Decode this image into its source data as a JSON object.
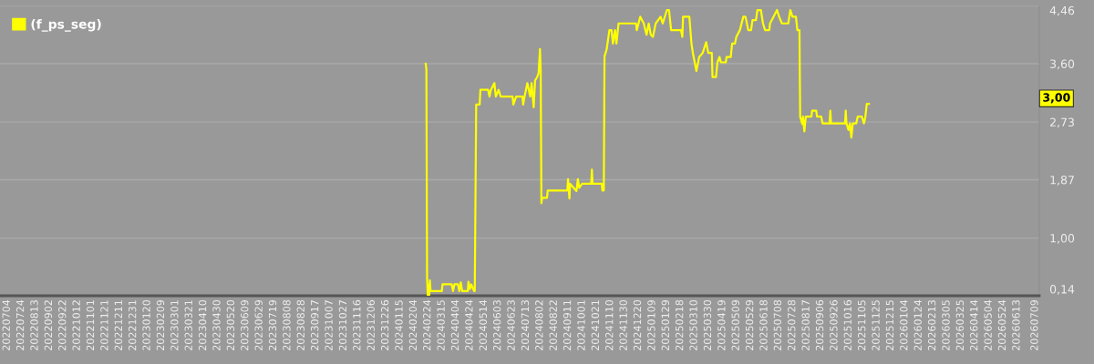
{
  "chart_data": {
    "type": "line",
    "series": [
      {
        "name": "(f_ps_seg)",
        "color": "#ffff00",
        "x": [
          "2024-02-21",
          "2024-02-22",
          "2024-02-23",
          "2024-02-24",
          "2024-02-25",
          "2024-02-26",
          "2024-02-27",
          "2024-02-28",
          "2024-03-15",
          "2024-03-16",
          "2024-03-29",
          "2024-03-31",
          "2024-04-02",
          "2024-04-07",
          "2024-04-09",
          "2024-04-11",
          "2024-04-13",
          "2024-04-21",
          "2024-04-22",
          "2024-04-24",
          "2024-04-26",
          "2024-04-30",
          "2024-05-01",
          "2024-05-03",
          "2024-05-08",
          "2024-05-09",
          "2024-05-20",
          "2024-05-22",
          "2024-05-24",
          "2024-05-29",
          "2024-05-31",
          "2024-06-04",
          "2024-06-07",
          "2024-06-24",
          "2024-06-25",
          "2024-06-29",
          "2024-07-08",
          "2024-07-09",
          "2024-07-11",
          "2024-07-15",
          "2024-07-19",
          "2024-07-21",
          "2024-07-24",
          "2024-07-26",
          "2024-07-29",
          "2024-07-31",
          "2024-08-02",
          "2024-08-03",
          "2024-08-04",
          "2024-08-05",
          "2024-08-12",
          "2024-08-13",
          "2024-09-10",
          "2024-09-11",
          "2024-09-13",
          "2024-09-14",
          "2024-09-23",
          "2024-09-25",
          "2024-09-27",
          "2024-10-01",
          "2024-10-14",
          "2024-10-15",
          "2024-10-16",
          "2024-10-29",
          "2024-10-30",
          "2024-11-01",
          "2024-11-02",
          "2024-11-05",
          "2024-11-09",
          "2024-11-12",
          "2024-11-14",
          "2024-11-17",
          "2024-11-19",
          "2024-11-22",
          "2024-12-17",
          "2024-12-18",
          "2024-12-23",
          "2024-12-28",
          "2025-01-01",
          "2025-01-04",
          "2025-01-07",
          "2025-01-10",
          "2025-01-14",
          "2025-01-21",
          "2025-01-24",
          "2025-01-30",
          "2025-02-02",
          "2025-02-05",
          "2025-02-19",
          "2025-02-21",
          "2025-02-22",
          "2025-03-03",
          "2025-03-06",
          "2025-03-08",
          "2025-03-13",
          "2025-03-17",
          "2025-03-22",
          "2025-03-27",
          "2025-03-30",
          "2025-04-04",
          "2025-04-05",
          "2025-04-10",
          "2025-04-12",
          "2025-04-15",
          "2025-04-17",
          "2025-04-24",
          "2025-04-25",
          "2025-05-01",
          "2025-05-03",
          "2025-05-07",
          "2025-05-09",
          "2025-05-14",
          "2025-05-19",
          "2025-05-22",
          "2025-05-26",
          "2025-05-30",
          "2025-06-01",
          "2025-06-06",
          "2025-06-08",
          "2025-06-13",
          "2025-06-16",
          "2025-06-19",
          "2025-06-25",
          "2025-06-26",
          "2025-07-01",
          "2025-07-06",
          "2025-07-09",
          "2025-07-13",
          "2025-07-22",
          "2025-07-25",
          "2025-07-28",
          "2025-08-02",
          "2025-08-04",
          "2025-08-07",
          "2025-08-08",
          "2025-08-11",
          "2025-08-12",
          "2025-08-14",
          "2025-08-16",
          "2025-08-24",
          "2025-08-25",
          "2025-08-31",
          "2025-09-01",
          "2025-09-07",
          "2025-09-09",
          "2025-09-19",
          "2025-09-20",
          "2025-09-21",
          "2025-10-11",
          "2025-10-12",
          "2025-10-13",
          "2025-10-16",
          "2025-10-18",
          "2025-10-20",
          "2025-10-22",
          "2025-10-27",
          "2025-10-29",
          "2025-11-04",
          "2025-11-07",
          "2025-11-09",
          "2025-11-11",
          "2025-11-14"
        ],
        "values": [
          3.6,
          3.52,
          0.41,
          0.14,
          0.3,
          0.14,
          0.37,
          0.21,
          0.21,
          0.31,
          0.31,
          0.21,
          0.31,
          0.31,
          0.21,
          0.34,
          0.21,
          0.21,
          0.35,
          0.24,
          0.31,
          0.21,
          0.21,
          2.99,
          2.99,
          3.21,
          3.21,
          3.11,
          3.21,
          3.31,
          3.11,
          3.21,
          3.11,
          3.11,
          2.99,
          3.11,
          3.11,
          2.99,
          3.11,
          3.31,
          3.11,
          3.31,
          2.95,
          3.35,
          3.4,
          3.46,
          3.82,
          3.5,
          1.52,
          1.6,
          1.6,
          1.71,
          1.71,
          1.88,
          1.59,
          1.81,
          1.7,
          1.88,
          1.75,
          1.81,
          1.81,
          2.02,
          1.81,
          1.81,
          1.71,
          1.71,
          3.71,
          3.81,
          4.1,
          4.1,
          3.9,
          4.1,
          3.9,
          4.2,
          4.2,
          4.1,
          4.3,
          4.2,
          4.03,
          4.2,
          4.03,
          4.0,
          4.2,
          4.3,
          4.2,
          4.4,
          4.4,
          4.1,
          4.1,
          4.0,
          4.3,
          4.3,
          3.9,
          3.76,
          3.49,
          3.7,
          3.76,
          3.92,
          3.76,
          3.76,
          3.4,
          3.4,
          3.62,
          3.7,
          3.62,
          3.62,
          3.7,
          3.7,
          3.9,
          3.9,
          4.0,
          4.1,
          4.3,
          4.3,
          4.1,
          4.1,
          4.25,
          4.25,
          4.4,
          4.4,
          4.2,
          4.1,
          4.1,
          4.2,
          4.3,
          4.4,
          4.3,
          4.2,
          4.2,
          4.4,
          4.3,
          4.3,
          4.1,
          4.1,
          2.81,
          2.7,
          2.81,
          2.59,
          2.81,
          2.81,
          2.9,
          2.9,
          2.81,
          2.81,
          2.71,
          2.71,
          2.9,
          2.71,
          2.71,
          2.9,
          2.71,
          2.61,
          2.71,
          2.5,
          2.71,
          2.71,
          2.81,
          2.81,
          2.71,
          2.81,
          3.0,
          3.0
        ]
      }
    ],
    "annotations": [
      "3,00"
    ],
    "xlim": [
      "2022-06-24",
      "2026-07-15"
    ],
    "xticks": [
      {
        "value": "2022-07-04",
        "label": "20220704"
      },
      {
        "value": "2022-07-24",
        "label": "20220724"
      },
      {
        "value": "2022-08-13",
        "label": "20220813"
      },
      {
        "value": "2022-09-02",
        "label": "20220902"
      },
      {
        "value": "2022-09-22",
        "label": "20220922"
      },
      {
        "value": "2022-10-12",
        "label": "20221012"
      },
      {
        "value": "2022-11-01",
        "label": "20221101"
      },
      {
        "value": "2022-11-21",
        "label": "20221121"
      },
      {
        "value": "2022-12-11",
        "label": "20221211"
      },
      {
        "value": "2022-12-31",
        "label": "20221231"
      },
      {
        "value": "2023-01-20",
        "label": "20230120"
      },
      {
        "value": "2023-02-09",
        "label": "20230209"
      },
      {
        "value": "2023-03-01",
        "label": "20230301"
      },
      {
        "value": "2023-03-21",
        "label": "20230321"
      },
      {
        "value": "2023-04-10",
        "label": "20230410"
      },
      {
        "value": "2023-04-30",
        "label": "20230430"
      },
      {
        "value": "2023-05-20",
        "label": "20230520"
      },
      {
        "value": "2023-06-09",
        "label": "20230609"
      },
      {
        "value": "2023-06-29",
        "label": "20230629"
      },
      {
        "value": "2023-07-19",
        "label": "20230719"
      },
      {
        "value": "2023-08-08",
        "label": "20230808"
      },
      {
        "value": "2023-08-28",
        "label": "20230828"
      },
      {
        "value": "2023-09-17",
        "label": "20230917"
      },
      {
        "value": "2023-10-07",
        "label": "20231007"
      },
      {
        "value": "2023-10-27",
        "label": "20231027"
      },
      {
        "value": "2023-11-16",
        "label": "20231116"
      },
      {
        "value": "2023-12-06",
        "label": "20231206"
      },
      {
        "value": "2023-12-26",
        "label": "20231226"
      },
      {
        "value": "2024-01-15",
        "label": "20240115"
      },
      {
        "value": "2024-02-04",
        "label": "20240204"
      },
      {
        "value": "2024-02-24",
        "label": "20240224"
      },
      {
        "value": "2024-03-15",
        "label": "20240315"
      },
      {
        "value": "2024-04-04",
        "label": "20240404"
      },
      {
        "value": "2024-04-24",
        "label": "20240424"
      },
      {
        "value": "2024-05-14",
        "label": "20240514"
      },
      {
        "value": "2024-06-03",
        "label": "20240603"
      },
      {
        "value": "2024-06-23",
        "label": "20240623"
      },
      {
        "value": "2024-07-13",
        "label": "20240713"
      },
      {
        "value": "2024-08-02",
        "label": "20240802"
      },
      {
        "value": "2024-08-22",
        "label": "20240822"
      },
      {
        "value": "2024-09-11",
        "label": "20240911"
      },
      {
        "value": "2024-10-01",
        "label": "20241001"
      },
      {
        "value": "2024-10-21",
        "label": "20241021"
      },
      {
        "value": "2024-11-10",
        "label": "20241110"
      },
      {
        "value": "2024-11-30",
        "label": "20241130"
      },
      {
        "value": "2024-12-20",
        "label": "20241220"
      },
      {
        "value": "2025-01-09",
        "label": "20250109"
      },
      {
        "value": "2025-01-29",
        "label": "20250129"
      },
      {
        "value": "2025-02-18",
        "label": "20250218"
      },
      {
        "value": "2025-03-10",
        "label": "20250310"
      },
      {
        "value": "2025-03-30",
        "label": "20250330"
      },
      {
        "value": "2025-04-19",
        "label": "20250419"
      },
      {
        "value": "2025-05-09",
        "label": "20250509"
      },
      {
        "value": "2025-05-29",
        "label": "20250529"
      },
      {
        "value": "2025-06-18",
        "label": "20250618"
      },
      {
        "value": "2025-07-08",
        "label": "20250708"
      },
      {
        "value": "2025-07-28",
        "label": "20250728"
      },
      {
        "value": "2025-08-17",
        "label": "20250817"
      },
      {
        "value": "2025-09-06",
        "label": "20250906"
      },
      {
        "value": "2025-09-26",
        "label": "20250926"
      },
      {
        "value": "2025-10-16",
        "label": "20251016"
      },
      {
        "value": "2025-11-05",
        "label": "20251105"
      },
      {
        "value": "2025-11-25",
        "label": "20251125"
      },
      {
        "value": "2025-12-15",
        "label": "20251215"
      },
      {
        "value": "2026-01-04",
        "label": "20260104"
      },
      {
        "value": "2026-01-24",
        "label": "20260124"
      },
      {
        "value": "2026-02-13",
        "label": "20260213"
      },
      {
        "value": "2026-03-05",
        "label": "20260305"
      },
      {
        "value": "2026-03-25",
        "label": "20260325"
      },
      {
        "value": "2026-04-14",
        "label": "20260414"
      },
      {
        "value": "2026-05-04",
        "label": "20260504"
      },
      {
        "value": "2026-05-24",
        "label": "20260524"
      },
      {
        "value": "2026-06-13",
        "label": "20260613"
      },
      {
        "value": "2026-07-09",
        "label": "20260709"
      }
    ],
    "ylim": [
      0.14,
      4.46
    ],
    "yticks": [
      {
        "value": 0.14,
        "label": "0,14"
      },
      {
        "value": 1.0,
        "label": "1,00"
      },
      {
        "value": 1.87,
        "label": "1,87"
      },
      {
        "value": 2.73,
        "label": "2,73"
      },
      {
        "value": 3.6,
        "label": "3,60"
      },
      {
        "value": 4.46,
        "label": "4,46"
      }
    ],
    "grid": "y",
    "legend": "top left",
    "marker": "none",
    "line_style": "solid"
  }
}
